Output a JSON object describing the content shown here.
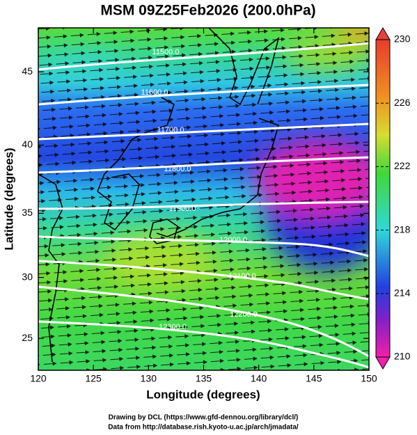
{
  "title": "MSM 09Z25Feb2026 (200.0hPa)",
  "x_axis": {
    "label": "Longitude (degrees)",
    "lim": [
      120,
      150
    ],
    "ticks": [
      120,
      125,
      130,
      135,
      140,
      145,
      150
    ]
  },
  "y_axis": {
    "label": "Latitude (degrees)",
    "lim": [
      22.3,
      47.8
    ],
    "ticks": [
      25,
      30,
      35,
      40,
      45
    ]
  },
  "colorbar": {
    "lim": [
      210,
      230
    ],
    "ticks": [
      210,
      214,
      218,
      222,
      226,
      230
    ]
  },
  "contour_labels": [
    "11500.0",
    "11600.0",
    "11700.0",
    "11800.0",
    "11900.0",
    "12000.0",
    "12100.0",
    "12200.0",
    "12300.0"
  ],
  "credits": [
    "Drawing by DCL (https://www.gfd-dennou.org/library/dcl/)",
    "Data from http://database.rish.kyoto-u.ac.jp/arch/jmadata/"
  ]
}
